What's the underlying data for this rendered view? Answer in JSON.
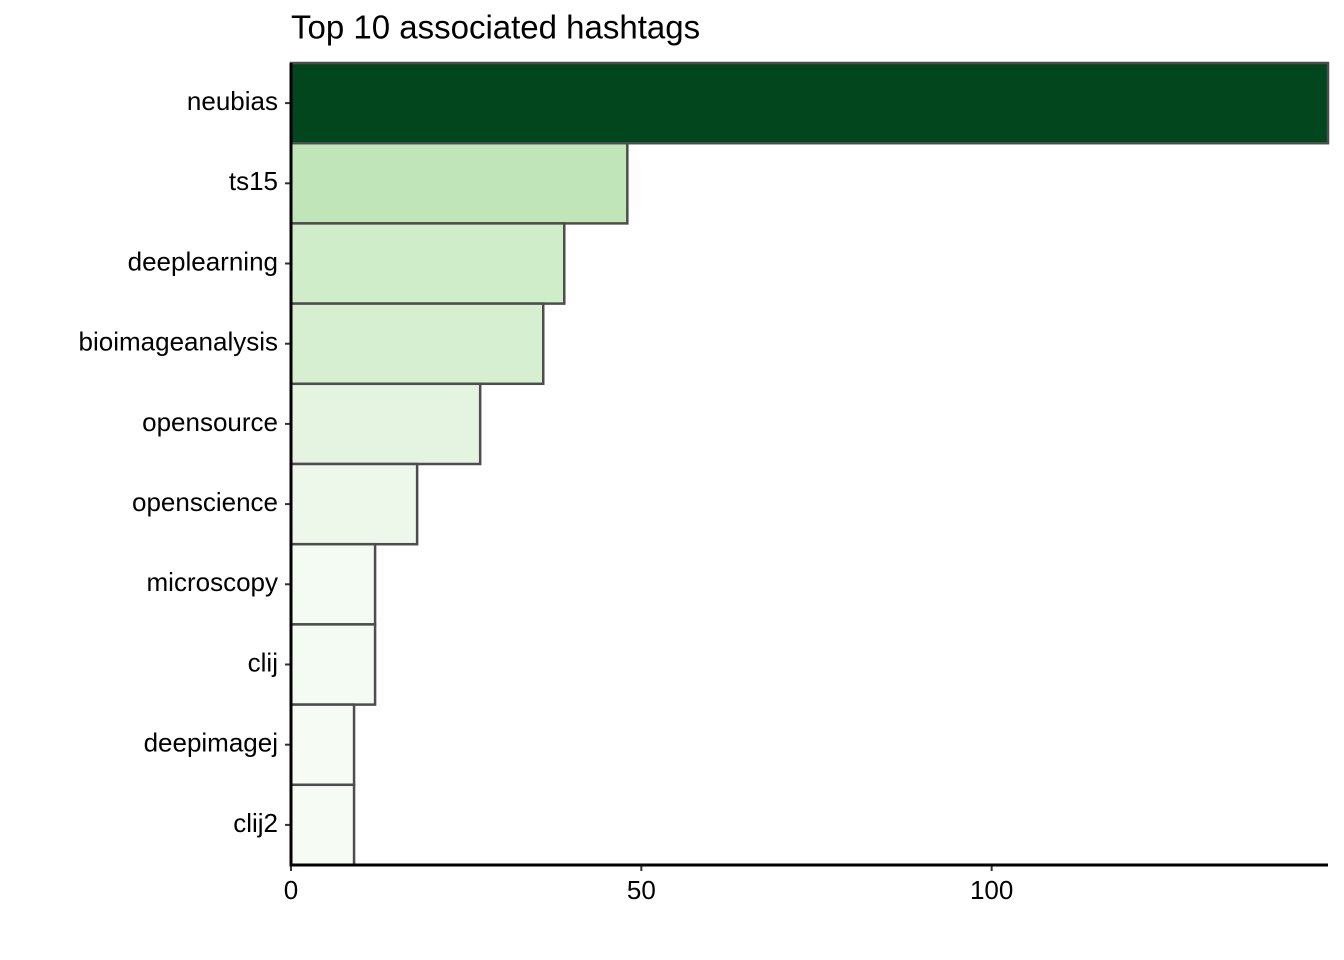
{
  "chart_data": {
    "type": "bar",
    "orientation": "horizontal",
    "title": "Top 10 associated hashtags",
    "categories": [
      "neubias",
      "ts15",
      "deeplearning",
      "bioimageanalysis",
      "opensource",
      "openscience",
      "microscopy",
      "clij",
      "deepimagej",
      "clij2"
    ],
    "values": [
      148,
      48,
      39,
      36,
      27,
      18,
      12,
      12,
      9,
      9
    ],
    "colors": [
      "#02461e",
      "#bfe5b8",
      "#d0edca",
      "#d6efd0",
      "#e5f4e1",
      "#eef8ea",
      "#f4fbf2",
      "#f4fbf2",
      "#f6fbf4",
      "#f6fbf4"
    ],
    "xlim": [
      0,
      148
    ],
    "xticks": [
      0,
      50,
      100
    ],
    "grid": false
  }
}
